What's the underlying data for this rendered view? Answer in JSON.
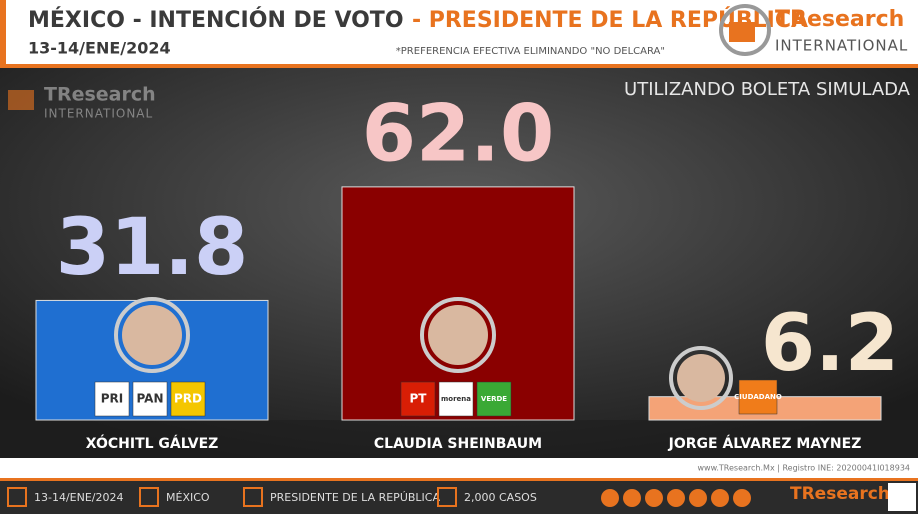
{
  "header": {
    "title": "MÉXICO - INTENCIÓN DE VOTO",
    "title_highlight": "- PRESIDENTE DE LA REPÚBLICA",
    "date": "13-14/ENE/2024",
    "note": "*PREFERENCIA EFECTIVA ELIMINANDO \"NO DELCARA\"",
    "logo_name": "TResearch",
    "logo_sub": "INTERNATIONAL"
  },
  "chart_data": {
    "type": "bar",
    "subtitle": "UTILIZANDO BOLETA SIMULADA",
    "categories": [
      "XÓCHITL GÁLVEZ",
      "CLAUDIA SHEINBAUM",
      "JORGE ÁLVAREZ MAYNEZ"
    ],
    "values": [
      31.8,
      62.0,
      6.2
    ],
    "value_labels": [
      "31.8",
      "62.0",
      "6.2"
    ],
    "colors": [
      "#1f6fd1",
      "#8a0000",
      "#f4a377"
    ],
    "label_colors": [
      "#cbd0f6",
      "#f7c6c6",
      "#f6e6cf"
    ],
    "parties": [
      [
        "PRI",
        "PAN",
        "PRD"
      ],
      [
        "PT",
        "morena",
        "VERDE"
      ],
      [
        "CIUDADANO"
      ]
    ]
  },
  "footer": {
    "website": "www.TResearch.Mx | Registro INE: 20200041I018934",
    "items": [
      "13-14/ENE/2024",
      "MÉXICO",
      "PRESIDENTE DE LA REPÚBLICA",
      "2,000 CASOS"
    ]
  }
}
